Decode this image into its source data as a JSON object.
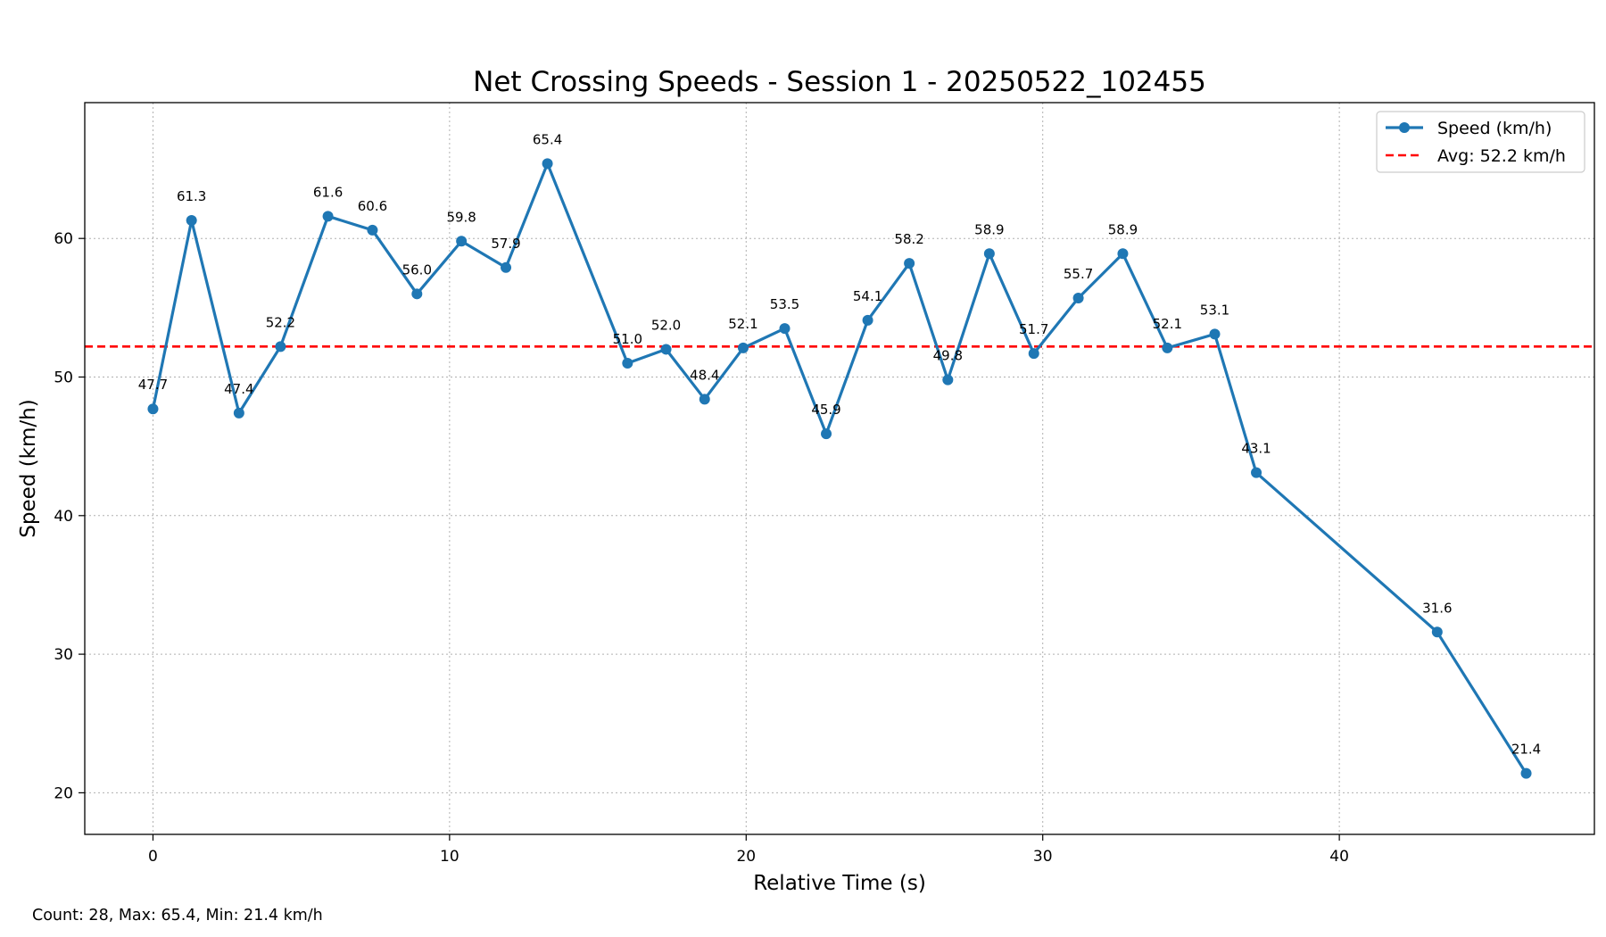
{
  "chart_data": {
    "type": "line",
    "title": "Net Crossing Speeds - Session 1 - 20250522_102455",
    "xlabel": "Relative Time (s)",
    "ylabel": "Speed (km/h)",
    "xlim": [
      -2.3,
      48.6
    ],
    "ylim": [
      17,
      69.8
    ],
    "xticks": [
      0,
      10,
      20,
      30,
      40
    ],
    "yticks": [
      20,
      30,
      40,
      50,
      60
    ],
    "grid": true,
    "legend_position": "top-right",
    "series": [
      {
        "name": "Speed (km/h)",
        "color": "#1f77b4",
        "marker": "circle",
        "x": [
          0,
          1.3,
          2.9,
          4.3,
          5.9,
          7.4,
          8.9,
          10.4,
          11.9,
          13.3,
          16.0,
          17.3,
          18.6,
          19.9,
          21.3,
          22.7,
          24.1,
          25.5,
          26.8,
          28.2,
          29.7,
          31.2,
          32.7,
          34.2,
          35.8,
          37.2,
          43.3,
          46.3
        ],
        "values": [
          47.7,
          61.3,
          47.4,
          52.2,
          61.6,
          60.6,
          56.0,
          59.8,
          57.9,
          65.4,
          51.0,
          52.0,
          48.4,
          52.1,
          53.5,
          45.9,
          54.1,
          58.2,
          49.8,
          58.9,
          51.7,
          55.7,
          58.9,
          52.1,
          53.1,
          43.1,
          31.6,
          21.4
        ],
        "labels": [
          "47.7",
          "61.3",
          "47.4",
          "52.2",
          "61.6",
          "60.6",
          "56.0",
          "59.8",
          "57.9",
          "65.4",
          "51.0",
          "52.0",
          "48.4",
          "52.1",
          "53.5",
          "45.9",
          "54.1",
          "58.2",
          "49.8",
          "58.9",
          "51.7",
          "55.7",
          "58.9",
          "52.1",
          "53.1",
          "43.1",
          "31.6",
          "21.4"
        ]
      }
    ],
    "reference_lines": [
      {
        "name": "Avg: 52.2 km/h",
        "value": 52.2,
        "color": "#ff0000",
        "style": "dashed"
      }
    ]
  },
  "footer": {
    "stats_text": "Count: 28, Max: 65.4, Min: 21.4 km/h"
  }
}
